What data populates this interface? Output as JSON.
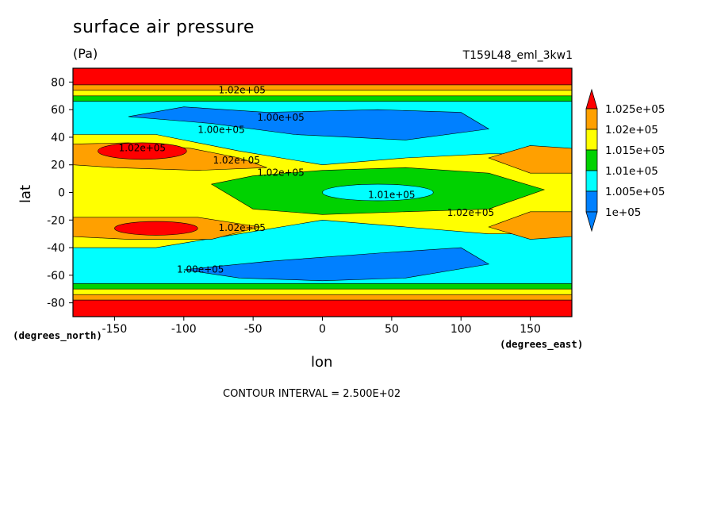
{
  "chart_data": {
    "type": "heatmap",
    "title": "surface air pressure",
    "units": "(Pa)",
    "run_id": "T159L48_eml_3kw1",
    "xlabel": "lon",
    "ylabel": "lat",
    "x_units": "(degrees_east)",
    "y_units": "(degrees_north)",
    "xlim": [
      -180,
      180
    ],
    "ylim": [
      -90,
      90
    ],
    "x_ticks": [
      "-150",
      "-100",
      "-50",
      "0",
      "50",
      "100",
      "150"
    ],
    "x_tick_values": [
      -150,
      -100,
      -50,
      0,
      50,
      100,
      150
    ],
    "y_ticks": [
      "80",
      "60",
      "40",
      "20",
      "0",
      "-20",
      "-40",
      "-60",
      "-80"
    ],
    "y_tick_values": [
      80,
      60,
      40,
      20,
      0,
      -20,
      -40,
      -60,
      -80
    ],
    "contour_interval_text": "CONTOUR INTERVAL = 2.500E+02",
    "contour_interval": 250,
    "colorbar": {
      "levels": [
        "1.025e+05",
        "1.02e+05",
        "1.015e+05",
        "1.01e+05",
        "1.005e+05",
        "1e+05"
      ],
      "level_values": [
        102500,
        102000,
        101500,
        101000,
        100500,
        100000
      ],
      "colors": [
        "#ff0000",
        "#ffa000",
        "#ffff00",
        "#00d200",
        "#00ffff",
        "#0080ff",
        "#ff0000",
        "#0080ff"
      ]
    },
    "contour_labels": [
      {
        "text": "1.02e+05",
        "lon": -130,
        "lat": 30
      },
      {
        "text": "1.02e+05",
        "lon": -62,
        "lat": 21
      },
      {
        "text": "1.02e+05",
        "lon": -30,
        "lat": 12
      },
      {
        "text": "1.01e+05",
        "lon": 50,
        "lat": -4
      },
      {
        "text": "1.02e+05",
        "lon": 107,
        "lat": -17
      },
      {
        "text": "1.02e+05",
        "lon": -58,
        "lat": -28
      },
      {
        "text": "1.00e+05",
        "lon": -88,
        "lat": -58
      },
      {
        "text": "1.00e+05",
        "lon": -73,
        "lat": 43
      },
      {
        "text": "1.00e+05",
        "lon": -30,
        "lat": 52
      },
      {
        "text": "1.02e+05",
        "lon": -58,
        "lat": 72
      }
    ]
  }
}
